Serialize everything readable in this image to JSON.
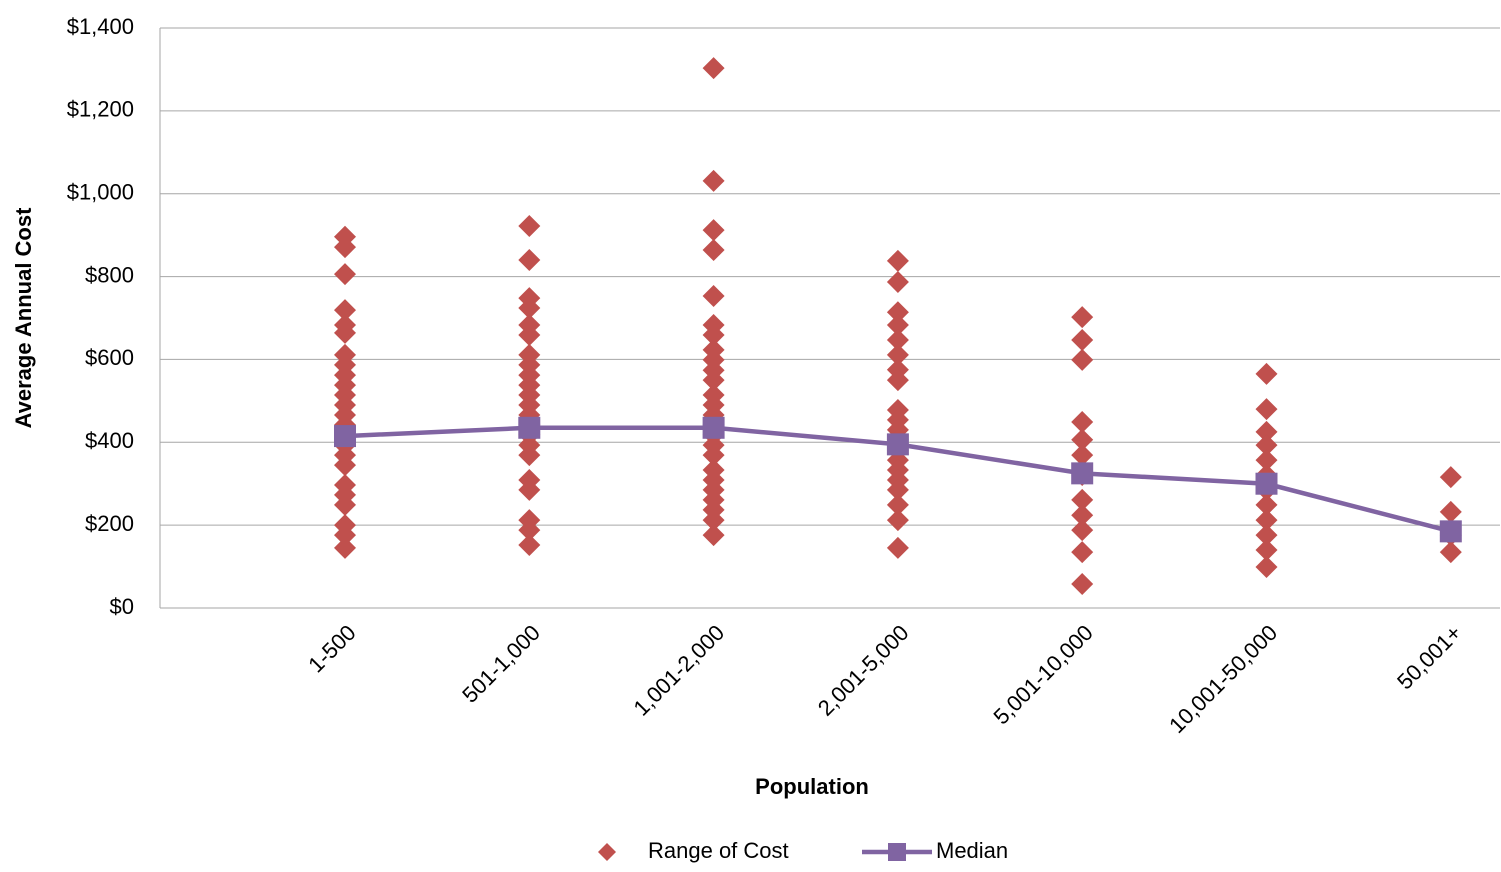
{
  "chart_data": {
    "type": "scatter",
    "x_label": "Population",
    "y_label": "Average Annual Cost",
    "categories": [
      "1-500",
      "501-1,000",
      "1,001-2,000",
      "2,001-5,000",
      "5,001-10,000",
      "10,001-50,000",
      "50,001+"
    ],
    "ylim": [
      0,
      1400
    ],
    "yticks": [
      {
        "value": 0,
        "label": "$0"
      },
      {
        "value": 200,
        "label": "$200"
      },
      {
        "value": 400,
        "label": "$400"
      },
      {
        "value": 600,
        "label": "$600"
      },
      {
        "value": 800,
        "label": "$800"
      },
      {
        "value": 1000,
        "label": "$1,000"
      },
      {
        "value": 1200,
        "label": "$1,200"
      },
      {
        "value": 1400,
        "label": "$1,400"
      }
    ],
    "grid": true,
    "legend": "bottom",
    "series": [
      {
        "name": "Range of Cost",
        "color": "#c0504d",
        "marker": "diamond",
        "values": [
          [
            896,
            871,
            806,
            719,
            683,
            664,
            611,
            587,
            562,
            538,
            514,
            490,
            466,
            442,
            418,
            393,
            369,
            345,
            297,
            273,
            249,
            200,
            176,
            145
          ],
          [
            922,
            840,
            748,
            724,
            683,
            659,
            611,
            587,
            562,
            538,
            514,
            490,
            466,
            442,
            418,
            393,
            369,
            309,
            285,
            212,
            188,
            152
          ],
          [
            1303,
            1031,
            912,
            864,
            753,
            683,
            659,
            623,
            599,
            574,
            550,
            514,
            490,
            466,
            442,
            418,
            393,
            369,
            333,
            309,
            285,
            261,
            237,
            212,
            176
          ],
          [
            838,
            787,
            714,
            683,
            647,
            611,
            575,
            550,
            478,
            454,
            430,
            406,
            381,
            357,
            333,
            309,
            285,
            249,
            212,
            145
          ],
          [
            702,
            647,
            599,
            449,
            406,
            369,
            321,
            261,
            224,
            188,
            135,
            58
          ],
          [
            565,
            480,
            425,
            393,
            357,
            321,
            285,
            249,
            212,
            176,
            140,
            99
          ],
          [
            316,
            232,
            176,
            135
          ]
        ]
      },
      {
        "name": "Median",
        "color": "#8064a2",
        "marker": "square",
        "values": [
          415,
          435,
          435,
          395,
          325,
          300,
          185
        ]
      }
    ]
  }
}
